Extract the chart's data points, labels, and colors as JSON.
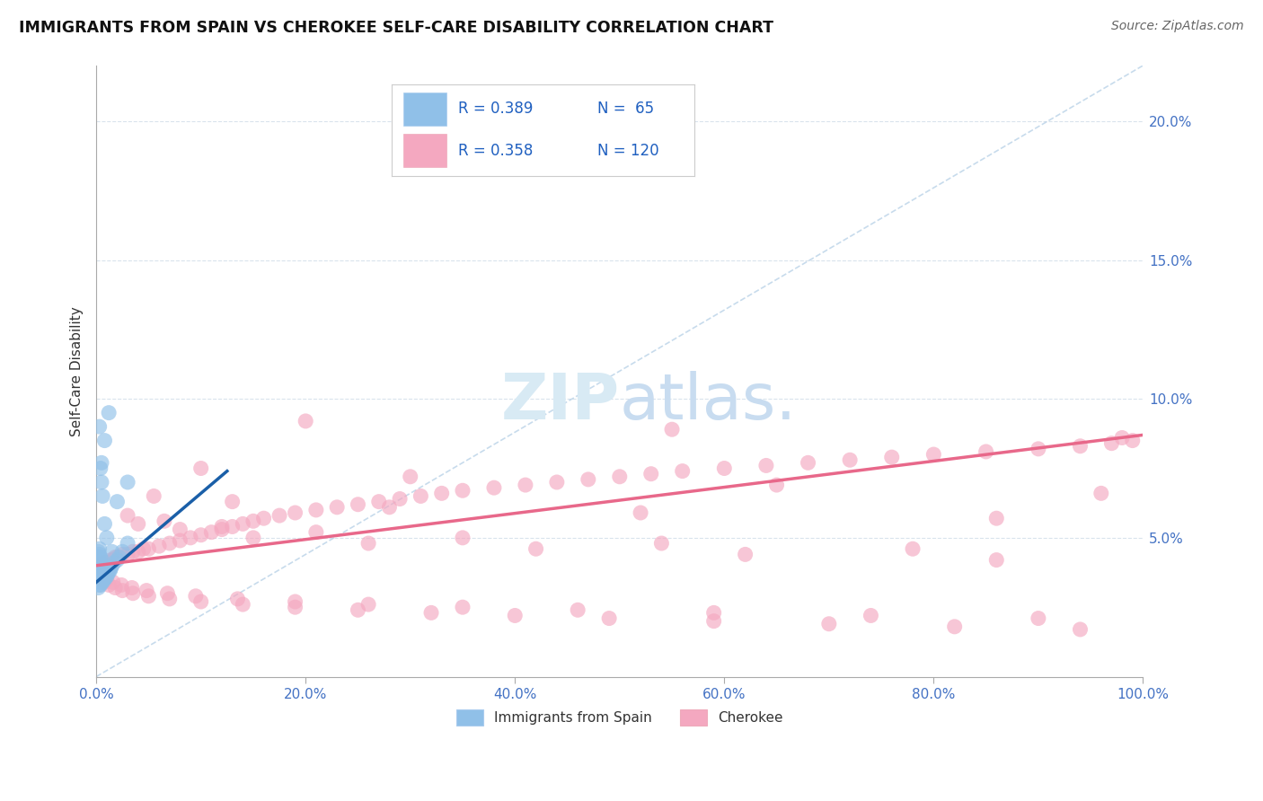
{
  "title": "IMMIGRANTS FROM SPAIN VS CHEROKEE SELF-CARE DISABILITY CORRELATION CHART",
  "source": "Source: ZipAtlas.com",
  "ylabel": "Self-Care Disability",
  "xlim": [
    0.0,
    1.0
  ],
  "ylim": [
    0.0,
    0.22
  ],
  "x_tick_vals": [
    0.0,
    0.2,
    0.4,
    0.6,
    0.8,
    1.0
  ],
  "x_tick_labels": [
    "0.0%",
    "20.0%",
    "40.0%",
    "60.0%",
    "80.0%",
    "100.0%"
  ],
  "y_ticks_right": [
    0.05,
    0.1,
    0.15,
    0.2
  ],
  "y_tick_labels_right": [
    "5.0%",
    "10.0%",
    "15.0%",
    "20.0%"
  ],
  "color_spain": "#90C0E8",
  "color_cherokee": "#F4A8C0",
  "color_spain_line": "#1A5FA8",
  "color_cherokee_line": "#E8688A",
  "color_diag_line": "#B0CCE4",
  "color_grid": "#D0DDE8",
  "color_title": "#111111",
  "color_source": "#666666",
  "color_legend_text": "#2060C0",
  "color_axis_text": "#4472C4",
  "background_color": "#FFFFFF",
  "watermark_color": "#D8EAF4",
  "spain_x": [
    0.001,
    0.001,
    0.001,
    0.001,
    0.002,
    0.002,
    0.002,
    0.002,
    0.002,
    0.002,
    0.002,
    0.003,
    0.003,
    0.003,
    0.003,
    0.003,
    0.003,
    0.003,
    0.004,
    0.004,
    0.004,
    0.004,
    0.004,
    0.004,
    0.005,
    0.005,
    0.005,
    0.005,
    0.005,
    0.006,
    0.006,
    0.006,
    0.006,
    0.007,
    0.007,
    0.007,
    0.008,
    0.008,
    0.008,
    0.009,
    0.009,
    0.01,
    0.01,
    0.011,
    0.012,
    0.013,
    0.014,
    0.015,
    0.017,
    0.02,
    0.022,
    0.025,
    0.03,
    0.003,
    0.004,
    0.005,
    0.006,
    0.008,
    0.01,
    0.015,
    0.012,
    0.008,
    0.005,
    0.02,
    0.03
  ],
  "spain_y": [
    0.035,
    0.038,
    0.04,
    0.042,
    0.032,
    0.035,
    0.037,
    0.039,
    0.041,
    0.043,
    0.045,
    0.033,
    0.036,
    0.038,
    0.04,
    0.042,
    0.044,
    0.046,
    0.033,
    0.035,
    0.037,
    0.039,
    0.041,
    0.043,
    0.034,
    0.036,
    0.038,
    0.04,
    0.042,
    0.034,
    0.036,
    0.038,
    0.04,
    0.035,
    0.037,
    0.039,
    0.035,
    0.037,
    0.039,
    0.036,
    0.038,
    0.036,
    0.038,
    0.037,
    0.038,
    0.038,
    0.039,
    0.04,
    0.041,
    0.042,
    0.043,
    0.045,
    0.048,
    0.09,
    0.075,
    0.07,
    0.065,
    0.055,
    0.05,
    0.045,
    0.095,
    0.085,
    0.077,
    0.063,
    0.07
  ],
  "cherokee_x": [
    0.001,
    0.002,
    0.003,
    0.004,
    0.005,
    0.006,
    0.007,
    0.008,
    0.009,
    0.01,
    0.012,
    0.014,
    0.016,
    0.018,
    0.02,
    0.025,
    0.03,
    0.035,
    0.04,
    0.045,
    0.05,
    0.06,
    0.07,
    0.08,
    0.09,
    0.1,
    0.11,
    0.12,
    0.13,
    0.14,
    0.15,
    0.16,
    0.175,
    0.19,
    0.21,
    0.23,
    0.25,
    0.27,
    0.29,
    0.31,
    0.33,
    0.35,
    0.38,
    0.41,
    0.44,
    0.47,
    0.5,
    0.53,
    0.56,
    0.6,
    0.64,
    0.68,
    0.72,
    0.76,
    0.8,
    0.85,
    0.9,
    0.94,
    0.97,
    0.99,
    0.005,
    0.008,
    0.012,
    0.018,
    0.025,
    0.035,
    0.05,
    0.07,
    0.1,
    0.14,
    0.19,
    0.25,
    0.32,
    0.4,
    0.49,
    0.59,
    0.7,
    0.82,
    0.94,
    0.003,
    0.006,
    0.01,
    0.016,
    0.024,
    0.034,
    0.048,
    0.068,
    0.095,
    0.135,
    0.19,
    0.26,
    0.35,
    0.46,
    0.59,
    0.74,
    0.9,
    0.04,
    0.08,
    0.15,
    0.26,
    0.42,
    0.62,
    0.86,
    0.03,
    0.065,
    0.12,
    0.21,
    0.35,
    0.54,
    0.78,
    0.055,
    0.13,
    0.28,
    0.52,
    0.86,
    0.1,
    0.3,
    0.65,
    0.96,
    0.2,
    0.55,
    0.98
  ],
  "cherokee_y": [
    0.038,
    0.039,
    0.04,
    0.039,
    0.04,
    0.041,
    0.04,
    0.041,
    0.04,
    0.041,
    0.041,
    0.042,
    0.042,
    0.043,
    0.043,
    0.044,
    0.044,
    0.045,
    0.045,
    0.046,
    0.046,
    0.047,
    0.048,
    0.049,
    0.05,
    0.051,
    0.052,
    0.053,
    0.054,
    0.055,
    0.056,
    0.057,
    0.058,
    0.059,
    0.06,
    0.061,
    0.062,
    0.063,
    0.064,
    0.065,
    0.066,
    0.067,
    0.068,
    0.069,
    0.07,
    0.071,
    0.072,
    0.073,
    0.074,
    0.075,
    0.076,
    0.077,
    0.078,
    0.079,
    0.08,
    0.081,
    0.082,
    0.083,
    0.084,
    0.085,
    0.035,
    0.034,
    0.033,
    0.032,
    0.031,
    0.03,
    0.029,
    0.028,
    0.027,
    0.026,
    0.025,
    0.024,
    0.023,
    0.022,
    0.021,
    0.02,
    0.019,
    0.018,
    0.017,
    0.037,
    0.036,
    0.035,
    0.034,
    0.033,
    0.032,
    0.031,
    0.03,
    0.029,
    0.028,
    0.027,
    0.026,
    0.025,
    0.024,
    0.023,
    0.022,
    0.021,
    0.055,
    0.053,
    0.05,
    0.048,
    0.046,
    0.044,
    0.042,
    0.058,
    0.056,
    0.054,
    0.052,
    0.05,
    0.048,
    0.046,
    0.065,
    0.063,
    0.061,
    0.059,
    0.057,
    0.075,
    0.072,
    0.069,
    0.066,
    0.092,
    0.089,
    0.086
  ],
  "spain_trend_x": [
    0.0,
    0.125
  ],
  "spain_trend_y": [
    0.034,
    0.074
  ],
  "cherokee_trend_x": [
    0.0,
    1.0
  ],
  "cherokee_trend_y": [
    0.04,
    0.087
  ]
}
